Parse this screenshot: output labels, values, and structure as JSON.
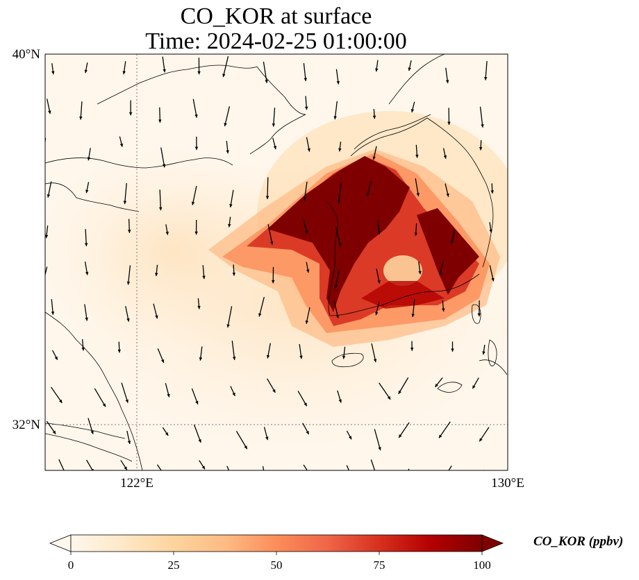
{
  "title": {
    "line1": "CO_KOR at surface",
    "line2": "Time: 2024-02-25 01:00:00"
  },
  "map": {
    "extent": {
      "lon": [
        119.5,
        130.0
      ],
      "lat": [
        30.9,
        40.0
      ]
    },
    "lat_ticks": [
      {
        "value": 40,
        "label": "40°N"
      },
      {
        "value": 32,
        "label": "32°N"
      }
    ],
    "lon_ticks": [
      {
        "value": 122,
        "label": "122°E"
      },
      {
        "value": 130,
        "label": "130°E"
      }
    ],
    "gridlines": "dotted at 122°E and 32°N",
    "colormap": "OrRd",
    "wind_vectors": "shown"
  },
  "colorbar": {
    "label": "CO_KOR (ppbv)",
    "ticks": [
      "0",
      "25",
      "50",
      "75",
      "100"
    ],
    "min": 0,
    "max": 100,
    "extend": "both",
    "colors": [
      "#fff7ec",
      "#fee8c8",
      "#fdd49e",
      "#fdbb84",
      "#fc8d59",
      "#ef6548",
      "#d7301f",
      "#b30000",
      "#7f0000"
    ]
  }
}
